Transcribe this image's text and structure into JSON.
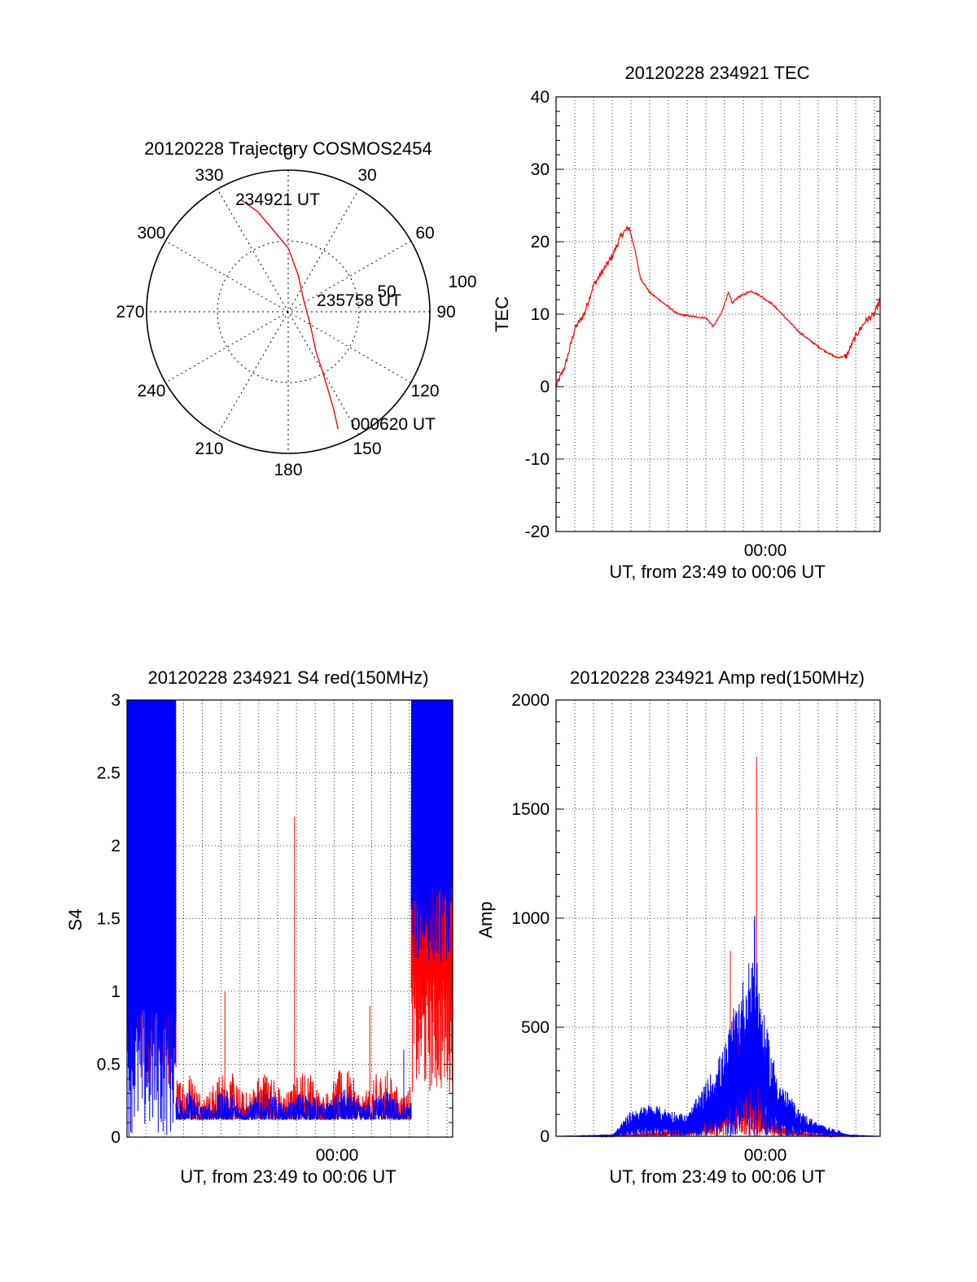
{
  "chart_data": [
    {
      "type": "polar",
      "title": "20120228 Trajectory COSMOS2454",
      "angle_labels": [
        "0",
        "30",
        "60",
        "90",
        "120",
        "150",
        "180",
        "210",
        "240",
        "270",
        "300",
        "330"
      ],
      "radius_labels": [
        "50",
        "100"
      ],
      "rlim": [
        0,
        100
      ],
      "trajectory_color": "#ff0000",
      "trajectory": [
        {
          "az": 337,
          "r": 86
        },
        {
          "az": 343,
          "r": 74
        },
        {
          "az": 350,
          "r": 58
        },
        {
          "az": 0,
          "r": 45
        },
        {
          "az": 15,
          "r": 27
        },
        {
          "az": 50,
          "r": 14
        },
        {
          "az": 120,
          "r": 18
        },
        {
          "az": 145,
          "r": 34
        },
        {
          "az": 150,
          "r": 48
        },
        {
          "az": 153,
          "r": 62
        },
        {
          "az": 155,
          "r": 76
        },
        {
          "az": 157,
          "r": 90
        }
      ],
      "point_labels": [
        {
          "text": "234921 UT",
          "at": "start"
        },
        {
          "text": "235758 UT",
          "at": "middle"
        },
        {
          "text": "000620 UT",
          "at": "end"
        }
      ]
    },
    {
      "type": "line",
      "title": "20120228 234921 TEC",
      "xlabel": "UT, from 23:49 to 00:06 UT",
      "ylabel": "TEC",
      "xlim": [
        -11,
        6.3
      ],
      "ylim": [
        -20,
        40
      ],
      "yticks": [
        "40",
        "30",
        "20",
        "10",
        "0",
        "-10",
        "-20"
      ],
      "xtick_labels": [
        {
          "label": "00:00",
          "value": 0
        }
      ],
      "grid": true,
      "series": [
        {
          "color": "#ff0000",
          "x": [
            -11,
            -10.5,
            -10,
            -9.5,
            -9,
            -8.5,
            -8,
            -7.5,
            -7.1,
            -6.8,
            -6.5,
            -6,
            -5.5,
            -5,
            -4.5,
            -4,
            -3.5,
            -3,
            -2.6,
            -2.2,
            -1.8,
            -1.6,
            -1.3,
            -1,
            -0.6,
            -0.2,
            0.5,
            1,
            1.5,
            2,
            2.5,
            3,
            3.5,
            4,
            4.5,
            5,
            5.5,
            6,
            6.3
          ],
          "y": [
            0,
            3,
            8,
            10,
            14,
            16,
            18,
            21,
            22,
            19,
            15,
            13,
            12,
            11,
            10,
            9.8,
            9.6,
            9.5,
            8.3,
            10,
            13,
            11.5,
            12.3,
            12.7,
            13.2,
            12.7,
            11.5,
            10.2,
            8.8,
            7.5,
            6.5,
            5.5,
            4.7,
            4,
            4.2,
            7,
            9,
            10,
            12
          ]
        }
      ]
    },
    {
      "type": "line",
      "title": "20120228 234921 S4 red(150MHz)",
      "xlabel": "UT, from 23:49 to 00:06 UT",
      "ylabel": "S4",
      "xlim": [
        -11,
        6.3
      ],
      "ylim": [
        0,
        3
      ],
      "yticks": [
        "3",
        "2.5",
        "2",
        "1.5",
        "1",
        "0.5",
        "0"
      ],
      "xtick_labels": [
        {
          "label": "00:00",
          "value": 0
        }
      ],
      "grid": true,
      "series": [
        {
          "color": "#ff0000",
          "segments": [
            [
              -11,
              -8.4,
              0.3,
              3,
              "noisy"
            ],
            [
              -8.4,
              4.1,
              0.12,
              0.4,
              "noisy"
            ],
            [
              4.1,
              6.3,
              0.3,
              3,
              "noisy"
            ]
          ],
          "spikes": [
            {
              "x": -5.8,
              "y": 1.0
            },
            {
              "x": -2.1,
              "y": 2.2
            },
            {
              "x": 1.9,
              "y": 0.9
            }
          ]
        },
        {
          "color": "#0000ff",
          "segments": [
            [
              -11,
              -8.4,
              0,
              3,
              "noisy"
            ],
            [
              -8.4,
              4.1,
              0.12,
              0.28,
              "noisy"
            ],
            [
              4.1,
              6.3,
              1.2,
              3,
              "noisy"
            ]
          ],
          "spikes": [
            {
              "x": -8.7,
              "y": 1.9
            },
            {
              "x": 3.7,
              "y": 0.6
            }
          ]
        }
      ]
    },
    {
      "type": "line",
      "title": "20120228 234921 Amp red(150MHz)",
      "xlabel": "UT, from 23:49 to 00:06 UT",
      "ylabel": "Amp",
      "xlim": [
        -11,
        6.3
      ],
      "ylim": [
        0,
        2000
      ],
      "yticks": [
        "2000",
        "1500",
        "1000",
        "500",
        "0"
      ],
      "xtick_labels": [
        {
          "label": "00:00",
          "value": 0
        }
      ],
      "grid": true,
      "series": [
        {
          "color": "#ff0000",
          "envelope": {
            "x": [
              -11,
              -8,
              -6,
              -4,
              -3,
              -2,
              -1.5,
              -1,
              -0.6,
              -0.3,
              0,
              0.5,
              1,
              2,
              3,
              4,
              5,
              6.3
            ],
            "y": [
              0,
              5,
              20,
              40,
              120,
              300,
              450,
              520,
              420,
              350,
              200,
              120,
              60,
              25,
              10,
              3,
              0,
              0
            ]
          },
          "spikes": [
            {
              "x": -0.3,
              "y": 1740
            },
            {
              "x": -1.7,
              "y": 850
            }
          ]
        },
        {
          "color": "#0000ff",
          "envelope": {
            "x": [
              -11,
              -8,
              -7,
              -6,
              -4,
              -3,
              -2,
              -1.2,
              -0.8,
              -0.4,
              0,
              0.5,
              1,
              2,
              3,
              4,
              4.7,
              6.3
            ],
            "y": [
              0,
              5,
              120,
              150,
              100,
              250,
              420,
              700,
              760,
              1000,
              600,
              400,
              250,
              120,
              60,
              30,
              5,
              0
            ]
          },
          "spikes": [
            {
              "x": -0.4,
              "y": 1010
            }
          ]
        }
      ]
    }
  ]
}
